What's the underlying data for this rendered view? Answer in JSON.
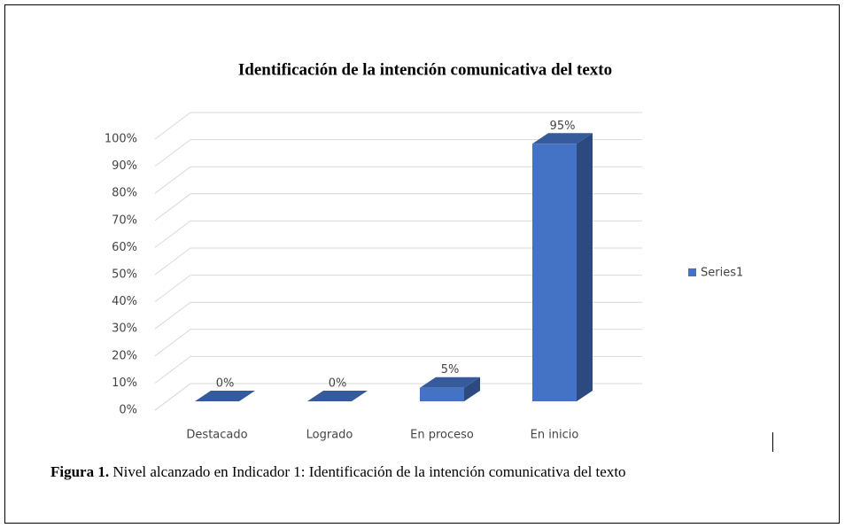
{
  "chart_data": {
    "type": "bar3d",
    "title": "Identificación de la intención comunicativa del texto",
    "categories": [
      "Destacado",
      "Logrado",
      "En proceso",
      "En inicio"
    ],
    "series": [
      {
        "name": "Series1",
        "color": "#4472c4",
        "values": [
          0,
          0,
          5,
          95
        ],
        "value_labels": [
          "0%",
          "0%",
          "5%",
          "95%"
        ]
      }
    ],
    "ylim": [
      0,
      100
    ],
    "yticks": [
      {
        "value": 0,
        "label": "0%"
      },
      {
        "value": 10,
        "label": "10%"
      },
      {
        "value": 20,
        "label": "20%"
      },
      {
        "value": 30,
        "label": "30%"
      },
      {
        "value": 40,
        "label": "40%"
      },
      {
        "value": 50,
        "label": "50%"
      },
      {
        "value": 60,
        "label": "60%"
      },
      {
        "value": 70,
        "label": "70%"
      },
      {
        "value": 80,
        "label": "80%"
      },
      {
        "value": 90,
        "label": "90%"
      },
      {
        "value": 100,
        "label": "100%"
      }
    ],
    "grid": true,
    "legend": "right",
    "caption": {
      "label": "Figura 1.",
      "text": " Nivel alcanzado en Indicador 1: Identificación de la intención comunicativa del texto"
    }
  }
}
